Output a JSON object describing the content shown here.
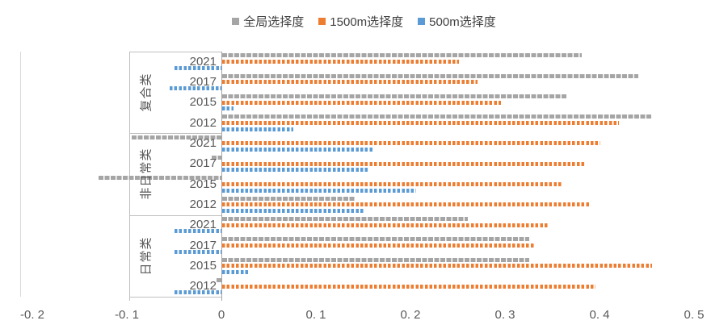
{
  "chart_data": {
    "type": "bar",
    "orientation": "horizontal",
    "title": "",
    "legend_position": "top",
    "grid": false,
    "xlim": [
      -0.2,
      0.5
    ],
    "x_ticks": [
      -0.2,
      -0.1,
      0,
      0.1,
      0.2,
      0.3,
      0.4,
      0.5
    ],
    "x_tick_labels": [
      "-0. 2",
      "-0. 1",
      "0",
      "0. 1",
      "0. 2",
      "0. 3",
      "0. 4",
      "0. 5"
    ],
    "category_groups": [
      {
        "label": "复合类",
        "years": [
          "2021",
          "2017",
          "2015",
          "2012"
        ]
      },
      {
        "label": "非日常类",
        "years": [
          "2021",
          "2017",
          "2015",
          "2012"
        ]
      },
      {
        "label": "日常类",
        "years": [
          "2021",
          "2017",
          "2015",
          "2012"
        ]
      }
    ],
    "series": [
      {
        "name": "全局选择度",
        "color": "#A5A5A5",
        "values": {
          "复合类": [
            0.38,
            0.44,
            0.365,
            0.455
          ],
          "非日常类": [
            -0.095,
            -0.01,
            -0.13,
            0.14
          ],
          "日常类": [
            0.26,
            0.325,
            0.325,
            -0.005
          ]
        }
      },
      {
        "name": "1500m选择度",
        "color": "#ED7D31",
        "values": {
          "复合类": [
            0.25,
            0.27,
            0.295,
            0.42
          ],
          "非日常类": [
            0.4,
            0.385,
            0.36,
            0.39
          ],
          "日常类": [
            0.345,
            0.33,
            0.455,
            0.395
          ]
        }
      },
      {
        "name": "500m选择度",
        "color": "#5B9BD5",
        "values": {
          "复合类": [
            -0.05,
            -0.055,
            0.012,
            0.075
          ],
          "非日常类": [
            0.16,
            0.155,
            0.205,
            0.15
          ],
          "日常类": [
            -0.05,
            -0.05,
            0.027,
            -0.05
          ]
        }
      }
    ],
    "axis_color": "#BFBFBF",
    "zero_axis_color": "#A6A6A6",
    "tick_label_color": "#595959"
  }
}
